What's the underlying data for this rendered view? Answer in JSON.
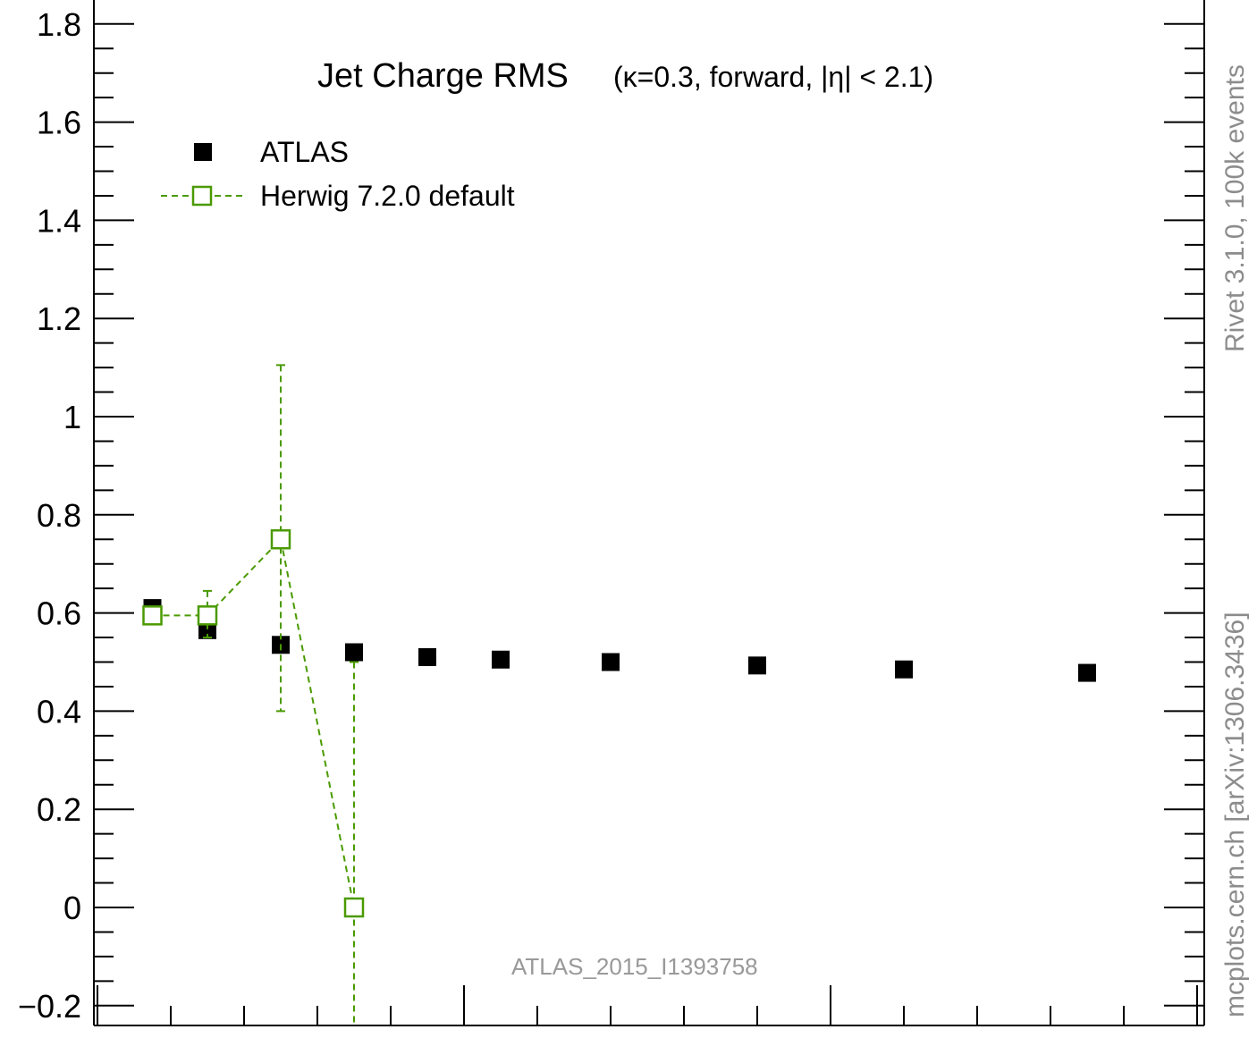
{
  "chart_data": {
    "type": "scatter",
    "title": "Jet Charge RMS",
    "title_detail": "(κ=0.3, forward, |η| < 2.1)",
    "xlabel": "",
    "ylabel": "",
    "ylim": [
      -0.25,
      1.85
    ],
    "xlim": [
      0,
      15
    ],
    "y_ticks": [
      {
        "value": -0.2,
        "label": "−0.2"
      },
      {
        "value": 0,
        "label": "0"
      },
      {
        "value": 0.2,
        "label": "0.2"
      },
      {
        "value": 0.4,
        "label": "0.4"
      },
      {
        "value": 0.6,
        "label": "0.6"
      },
      {
        "value": 0.8,
        "label": "0.8"
      },
      {
        "value": 1,
        "label": "1"
      },
      {
        "value": 1.2,
        "label": "1.2"
      },
      {
        "value": 1.4,
        "label": "1.4"
      },
      {
        "value": 1.6,
        "label": "1.6"
      },
      {
        "value": 1.8,
        "label": "1.8"
      }
    ],
    "grid": false,
    "legend_position": "top-left",
    "series": [
      {
        "name": "ATLAS",
        "color": "#000000",
        "marker": "filled-square",
        "points": [
          {
            "x": 0.75,
            "y": 0.61
          },
          {
            "x": 1.5,
            "y": 0.565
          },
          {
            "x": 2.5,
            "y": 0.535
          },
          {
            "x": 3.5,
            "y": 0.52
          },
          {
            "x": 4.5,
            "y": 0.51
          },
          {
            "x": 5.5,
            "y": 0.505
          },
          {
            "x": 7.0,
            "y": 0.5
          },
          {
            "x": 9.0,
            "y": 0.493
          },
          {
            "x": 11.0,
            "y": 0.485
          },
          {
            "x": 13.5,
            "y": 0.478
          }
        ]
      },
      {
        "name": "Herwig 7.2.0 default",
        "color": "#4a9a00",
        "marker": "open-square",
        "line_style": "dashed",
        "points": [
          {
            "x": 0.75,
            "y": 0.595,
            "err_low": 0.595,
            "err_high": 0.595
          },
          {
            "x": 1.5,
            "y": 0.595,
            "err_low": 0.55,
            "err_high": 0.645
          },
          {
            "x": 2.5,
            "y": 0.75,
            "err_low": 0.4,
            "err_high": 1.105
          },
          {
            "x": 3.5,
            "y": 0.0,
            "err_low": -0.25,
            "err_high": 0.5
          }
        ]
      }
    ]
  },
  "watermark": "ATLAS_2015_I1393758",
  "side_label_top": "Rivet 3.1.0,  100k events",
  "side_label_bottom": "mcplots.cern.ch [arXiv:1306.3436]"
}
